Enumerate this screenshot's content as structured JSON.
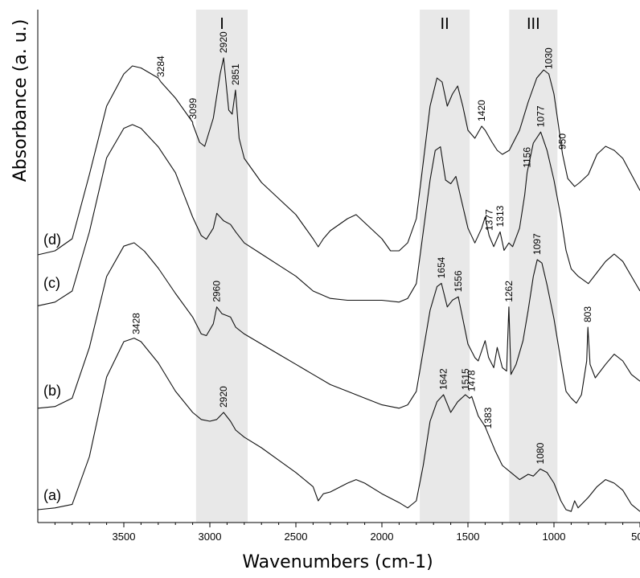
{
  "chart_data": {
    "type": "line",
    "title": "",
    "xlabel": "Wavenumbers (cm-1)",
    "ylabel": "Absorbance (a. u.)",
    "xlim": [
      4000,
      500
    ],
    "x_reversed": true,
    "x_ticks": [
      3500,
      3000,
      2500,
      2000,
      1500,
      1000,
      500
    ],
    "y_ticks_shown": false,
    "grid": false,
    "legend": "none",
    "line_color": "#111111",
    "shade_color": "#e8e8e8",
    "regions": [
      {
        "label": "I",
        "from": 3080,
        "to": 2780
      },
      {
        "label": "II",
        "from": 1780,
        "to": 1490
      },
      {
        "label": "III",
        "from": 1260,
        "to": 980
      }
    ],
    "series": [
      {
        "name": "(a)",
        "points": [
          [
            4000,
            0.05
          ],
          [
            3900,
            0.06
          ],
          [
            3800,
            0.08
          ],
          [
            3700,
            0.35
          ],
          [
            3600,
            0.8
          ],
          [
            3500,
            1.0
          ],
          [
            3440,
            1.02
          ],
          [
            3400,
            1.0
          ],
          [
            3300,
            0.88
          ],
          [
            3200,
            0.72
          ],
          [
            3100,
            0.6
          ],
          [
            3050,
            0.56
          ],
          [
            3000,
            0.55
          ],
          [
            2960,
            0.56
          ],
          [
            2920,
            0.6
          ],
          [
            2880,
            0.55
          ],
          [
            2850,
            0.5
          ],
          [
            2800,
            0.46
          ],
          [
            2700,
            0.4
          ],
          [
            2600,
            0.33
          ],
          [
            2500,
            0.26
          ],
          [
            2400,
            0.18
          ],
          [
            2370,
            0.1
          ],
          [
            2340,
            0.14
          ],
          [
            2300,
            0.15
          ],
          [
            2200,
            0.2
          ],
          [
            2150,
            0.22
          ],
          [
            2100,
            0.2
          ],
          [
            2000,
            0.14
          ],
          [
            1900,
            0.09
          ],
          [
            1850,
            0.06
          ],
          [
            1800,
            0.1
          ],
          [
            1760,
            0.3
          ],
          [
            1720,
            0.55
          ],
          [
            1680,
            0.66
          ],
          [
            1642,
            0.7
          ],
          [
            1600,
            0.6
          ],
          [
            1560,
            0.66
          ],
          [
            1515,
            0.7
          ],
          [
            1490,
            0.68
          ],
          [
            1478,
            0.69
          ],
          [
            1440,
            0.58
          ],
          [
            1400,
            0.52
          ],
          [
            1383,
            0.48
          ],
          [
            1340,
            0.38
          ],
          [
            1300,
            0.3
          ],
          [
            1250,
            0.26
          ],
          [
            1200,
            0.22
          ],
          [
            1150,
            0.25
          ],
          [
            1120,
            0.24
          ],
          [
            1080,
            0.28
          ],
          [
            1040,
            0.26
          ],
          [
            1000,
            0.2
          ],
          [
            960,
            0.1
          ],
          [
            930,
            0.05
          ],
          [
            900,
            0.04
          ],
          [
            880,
            0.1
          ],
          [
            860,
            0.06
          ],
          [
            800,
            0.12
          ],
          [
            750,
            0.18
          ],
          [
            700,
            0.22
          ],
          [
            650,
            0.2
          ],
          [
            600,
            0.16
          ],
          [
            550,
            0.08
          ],
          [
            500,
            0.04
          ]
        ]
      },
      {
        "name": "(b)",
        "points": [
          [
            4000,
            0.02
          ],
          [
            3900,
            0.03
          ],
          [
            3800,
            0.08
          ],
          [
            3700,
            0.38
          ],
          [
            3600,
            0.8
          ],
          [
            3500,
            0.98
          ],
          [
            3440,
            1.0
          ],
          [
            3380,
            0.95
          ],
          [
            3300,
            0.85
          ],
          [
            3200,
            0.7
          ],
          [
            3100,
            0.56
          ],
          [
            3050,
            0.46
          ],
          [
            3020,
            0.45
          ],
          [
            2980,
            0.52
          ],
          [
            2960,
            0.62
          ],
          [
            2930,
            0.58
          ],
          [
            2880,
            0.56
          ],
          [
            2850,
            0.5
          ],
          [
            2800,
            0.46
          ],
          [
            2700,
            0.4
          ],
          [
            2600,
            0.34
          ],
          [
            2500,
            0.28
          ],
          [
            2400,
            0.22
          ],
          [
            2300,
            0.16
          ],
          [
            2200,
            0.12
          ],
          [
            2100,
            0.08
          ],
          [
            2000,
            0.04
          ],
          [
            1900,
            0.02
          ],
          [
            1850,
            0.04
          ],
          [
            1800,
            0.12
          ],
          [
            1760,
            0.36
          ],
          [
            1720,
            0.6
          ],
          [
            1680,
            0.74
          ],
          [
            1654,
            0.76
          ],
          [
            1620,
            0.62
          ],
          [
            1590,
            0.66
          ],
          [
            1556,
            0.68
          ],
          [
            1530,
            0.55
          ],
          [
            1500,
            0.4
          ],
          [
            1460,
            0.32
          ],
          [
            1440,
            0.3
          ],
          [
            1400,
            0.42
          ],
          [
            1380,
            0.32
          ],
          [
            1350,
            0.26
          ],
          [
            1330,
            0.38
          ],
          [
            1300,
            0.26
          ],
          [
            1275,
            0.24
          ],
          [
            1262,
            0.62
          ],
          [
            1250,
            0.22
          ],
          [
            1220,
            0.28
          ],
          [
            1180,
            0.42
          ],
          [
            1150,
            0.6
          ],
          [
            1120,
            0.8
          ],
          [
            1097,
            0.9
          ],
          [
            1070,
            0.88
          ],
          [
            1040,
            0.75
          ],
          [
            1000,
            0.55
          ],
          [
            960,
            0.3
          ],
          [
            930,
            0.12
          ],
          [
            900,
            0.08
          ],
          [
            870,
            0.05
          ],
          [
            840,
            0.1
          ],
          [
            810,
            0.3
          ],
          [
            803,
            0.5
          ],
          [
            790,
            0.28
          ],
          [
            760,
            0.2
          ],
          [
            700,
            0.28
          ],
          [
            650,
            0.34
          ],
          [
            600,
            0.3
          ],
          [
            550,
            0.22
          ],
          [
            500,
            0.18
          ]
        ]
      },
      {
        "name": "(c)",
        "points": [
          [
            4000,
            0.02
          ],
          [
            3900,
            0.04
          ],
          [
            3800,
            0.1
          ],
          [
            3700,
            0.42
          ],
          [
            3600,
            0.82
          ],
          [
            3500,
            0.98
          ],
          [
            3450,
            1.0
          ],
          [
            3400,
            0.98
          ],
          [
            3300,
            0.88
          ],
          [
            3200,
            0.74
          ],
          [
            3150,
            0.62
          ],
          [
            3100,
            0.5
          ],
          [
            3050,
            0.4
          ],
          [
            3020,
            0.38
          ],
          [
            2980,
            0.44
          ],
          [
            2960,
            0.52
          ],
          [
            2920,
            0.48
          ],
          [
            2880,
            0.46
          ],
          [
            2850,
            0.42
          ],
          [
            2800,
            0.36
          ],
          [
            2700,
            0.3
          ],
          [
            2600,
            0.24
          ],
          [
            2500,
            0.18
          ],
          [
            2400,
            0.1
          ],
          [
            2300,
            0.06
          ],
          [
            2200,
            0.05
          ],
          [
            2100,
            0.05
          ],
          [
            2000,
            0.05
          ],
          [
            1900,
            0.04
          ],
          [
            1850,
            0.06
          ],
          [
            1800,
            0.14
          ],
          [
            1760,
            0.42
          ],
          [
            1720,
            0.7
          ],
          [
            1690,
            0.86
          ],
          [
            1660,
            0.88
          ],
          [
            1630,
            0.7
          ],
          [
            1600,
            0.68
          ],
          [
            1570,
            0.72
          ],
          [
            1540,
            0.6
          ],
          [
            1500,
            0.44
          ],
          [
            1460,
            0.36
          ],
          [
            1420,
            0.44
          ],
          [
            1400,
            0.5
          ],
          [
            1377,
            0.4
          ],
          [
            1350,
            0.34
          ],
          [
            1313,
            0.42
          ],
          [
            1290,
            0.32
          ],
          [
            1262,
            0.36
          ],
          [
            1240,
            0.34
          ],
          [
            1200,
            0.44
          ],
          [
            1170,
            0.62
          ],
          [
            1156,
            0.74
          ],
          [
            1120,
            0.9
          ],
          [
            1077,
            0.96
          ],
          [
            1040,
            0.86
          ],
          [
            1000,
            0.7
          ],
          [
            960,
            0.5
          ],
          [
            930,
            0.32
          ],
          [
            900,
            0.22
          ],
          [
            860,
            0.18
          ],
          [
            800,
            0.14
          ],
          [
            750,
            0.2
          ],
          [
            700,
            0.26
          ],
          [
            650,
            0.3
          ],
          [
            600,
            0.26
          ],
          [
            550,
            0.18
          ],
          [
            500,
            0.1
          ]
        ]
      },
      {
        "name": "(d)",
        "points": [
          [
            4000,
            0.02
          ],
          [
            3900,
            0.04
          ],
          [
            3800,
            0.1
          ],
          [
            3700,
            0.42
          ],
          [
            3600,
            0.76
          ],
          [
            3500,
            0.92
          ],
          [
            3450,
            0.96
          ],
          [
            3400,
            0.95
          ],
          [
            3300,
            0.9
          ],
          [
            3284,
            0.88
          ],
          [
            3200,
            0.8
          ],
          [
            3100,
            0.68
          ],
          [
            3099,
            0.67
          ],
          [
            3060,
            0.58
          ],
          [
            3030,
            0.56
          ],
          [
            2980,
            0.7
          ],
          [
            2940,
            0.92
          ],
          [
            2920,
            1.0
          ],
          [
            2890,
            0.74
          ],
          [
            2870,
            0.72
          ],
          [
            2851,
            0.84
          ],
          [
            2830,
            0.6
          ],
          [
            2800,
            0.5
          ],
          [
            2700,
            0.38
          ],
          [
            2600,
            0.3
          ],
          [
            2500,
            0.22
          ],
          [
            2450,
            0.16
          ],
          [
            2400,
            0.1
          ],
          [
            2370,
            0.06
          ],
          [
            2340,
            0.1
          ],
          [
            2300,
            0.14
          ],
          [
            2200,
            0.2
          ],
          [
            2150,
            0.22
          ],
          [
            2100,
            0.18
          ],
          [
            2000,
            0.1
          ],
          [
            1950,
            0.04
          ],
          [
            1900,
            0.04
          ],
          [
            1850,
            0.08
          ],
          [
            1800,
            0.2
          ],
          [
            1760,
            0.48
          ],
          [
            1720,
            0.76
          ],
          [
            1680,
            0.9
          ],
          [
            1650,
            0.88
          ],
          [
            1620,
            0.76
          ],
          [
            1590,
            0.82
          ],
          [
            1560,
            0.86
          ],
          [
            1530,
            0.76
          ],
          [
            1500,
            0.64
          ],
          [
            1460,
            0.6
          ],
          [
            1420,
            0.66
          ],
          [
            1400,
            0.64
          ],
          [
            1360,
            0.58
          ],
          [
            1330,
            0.54
          ],
          [
            1300,
            0.52
          ],
          [
            1260,
            0.54
          ],
          [
            1200,
            0.64
          ],
          [
            1150,
            0.78
          ],
          [
            1100,
            0.9
          ],
          [
            1060,
            0.94
          ],
          [
            1030,
            0.92
          ],
          [
            1000,
            0.82
          ],
          [
            980,
            0.7
          ],
          [
            950,
            0.52
          ],
          [
            920,
            0.4
          ],
          [
            880,
            0.36
          ],
          [
            850,
            0.38
          ],
          [
            800,
            0.42
          ],
          [
            750,
            0.52
          ],
          [
            700,
            0.56
          ],
          [
            650,
            0.54
          ],
          [
            600,
            0.5
          ],
          [
            550,
            0.42
          ],
          [
            500,
            0.34
          ]
        ]
      }
    ],
    "annotations": [
      {
        "series": "(a)",
        "x": 3428,
        "text": "3428"
      },
      {
        "series": "(a)",
        "x": 2920,
        "text": "2920"
      },
      {
        "series": "(a)",
        "x": 1642,
        "text": "1642"
      },
      {
        "series": "(a)",
        "x": 1515,
        "text": "1515"
      },
      {
        "series": "(a)",
        "x": 1478,
        "text": "1478"
      },
      {
        "series": "(a)",
        "x": 1383,
        "text": "1383"
      },
      {
        "series": "(a)",
        "x": 1080,
        "text": "1080"
      },
      {
        "series": "(b)",
        "x": 2960,
        "text": "2960"
      },
      {
        "series": "(b)",
        "x": 1654,
        "text": "1654"
      },
      {
        "series": "(b)",
        "x": 1556,
        "text": "1556"
      },
      {
        "series": "(b)",
        "x": 1262,
        "text": "1262"
      },
      {
        "series": "(b)",
        "x": 1097,
        "text": "1097"
      },
      {
        "series": "(b)",
        "x": 803,
        "text": "803"
      },
      {
        "series": "(c)",
        "x": 1377,
        "text": "1377"
      },
      {
        "series": "(c)",
        "x": 1313,
        "text": "1313"
      },
      {
        "series": "(c)",
        "x": 1156,
        "text": "1156"
      },
      {
        "series": "(c)",
        "x": 1077,
        "text": "1077"
      },
      {
        "series": "(d)",
        "x": 3284,
        "text": "3284"
      },
      {
        "series": "(d)",
        "x": 3099,
        "text": "3099"
      },
      {
        "series": "(d)",
        "x": 2920,
        "text": "2920"
      },
      {
        "series": "(d)",
        "x": 2851,
        "text": "2851"
      },
      {
        "series": "(d)",
        "x": 1420,
        "text": "1420"
      },
      {
        "series": "(d)",
        "x": 1030,
        "text": "1030"
      },
      {
        "series": "(d)",
        "x": 950,
        "text": "950"
      }
    ]
  }
}
